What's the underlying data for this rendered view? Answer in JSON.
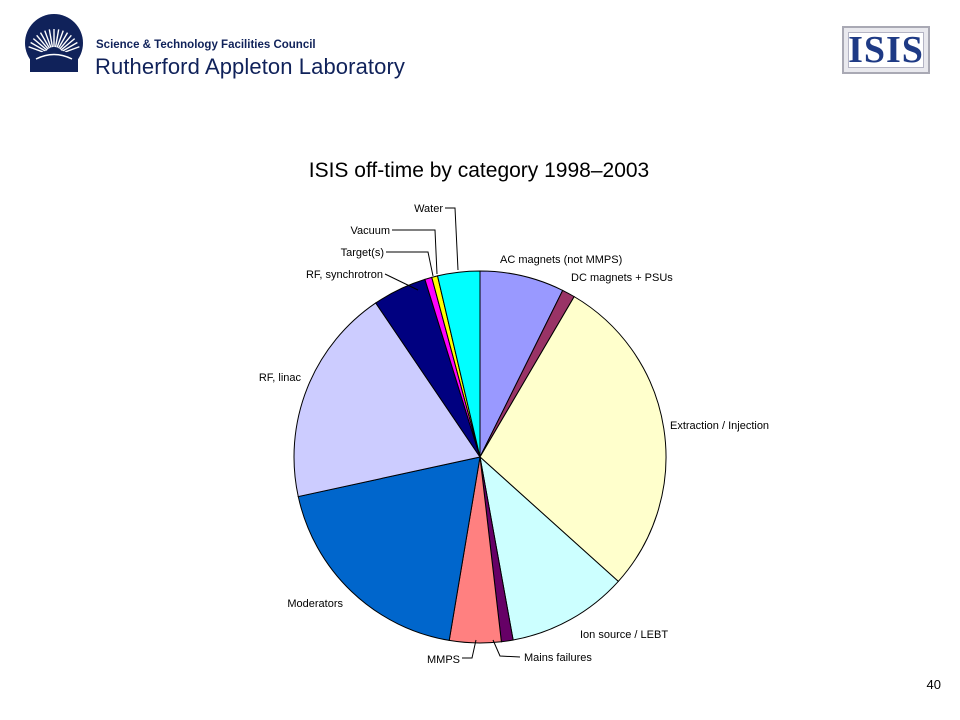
{
  "header": {
    "council": "Science & Technology Facilities Council",
    "lab": "Rutherford Appleton Laboratory",
    "isis_logo_text": "ISIS"
  },
  "slide_number": "40",
  "chart_data": {
    "type": "pie",
    "title": "ISIS off-time by category 1998–2003",
    "start_angle_deg": 0,
    "direction": "clockwise",
    "slices": [
      {
        "label": "AC magnets (not MMPS)",
        "value": 7.2,
        "color": "#9999ff"
      },
      {
        "label": "DC magnets + PSUs",
        "value": 1.1,
        "color": "#993366"
      },
      {
        "label": "Extraction / Injection",
        "value": 27.7,
        "color": "#ffffcc"
      },
      {
        "label": "Ion source / LEBT",
        "value": 10.3,
        "color": "#ccffff"
      },
      {
        "label": "Mains failures",
        "value": 1.0,
        "color": "#660066"
      },
      {
        "label": "MMPS",
        "value": 4.4,
        "color": "#ff8080"
      },
      {
        "label": "Moderators",
        "value": 18.6,
        "color": "#0066cc"
      },
      {
        "label": "RF, linac",
        "value": 18.6,
        "color": "#ccccff"
      },
      {
        "label": "RF, synchrotron",
        "value": 4.6,
        "color": "#000080"
      },
      {
        "label": "Target(s)",
        "value": 0.6,
        "color": "#ff00ff"
      },
      {
        "label": "Vacuum",
        "value": 0.5,
        "color": "#ffff00"
      },
      {
        "label": "Water",
        "value": 3.6,
        "color": "#00ffff"
      }
    ]
  }
}
